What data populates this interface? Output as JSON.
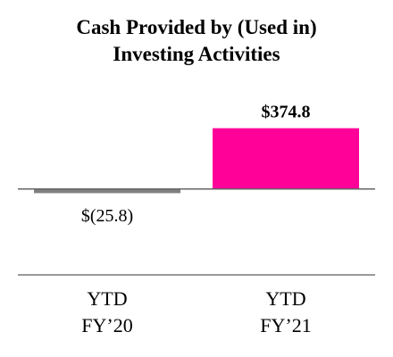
{
  "chart_data": {
    "type": "bar",
    "title": "Cash Provided by (Used in)\nInvesting Activities",
    "categories": [
      "YTD\nFY’20",
      "YTD\nFY’21"
    ],
    "values": [
      -25.8,
      374.8
    ],
    "value_labels": [
      "$(25.8)",
      "$374.8"
    ],
    "colors": [
      "#808080",
      "#ff0099"
    ],
    "ylim": [
      -530,
      450
    ]
  }
}
